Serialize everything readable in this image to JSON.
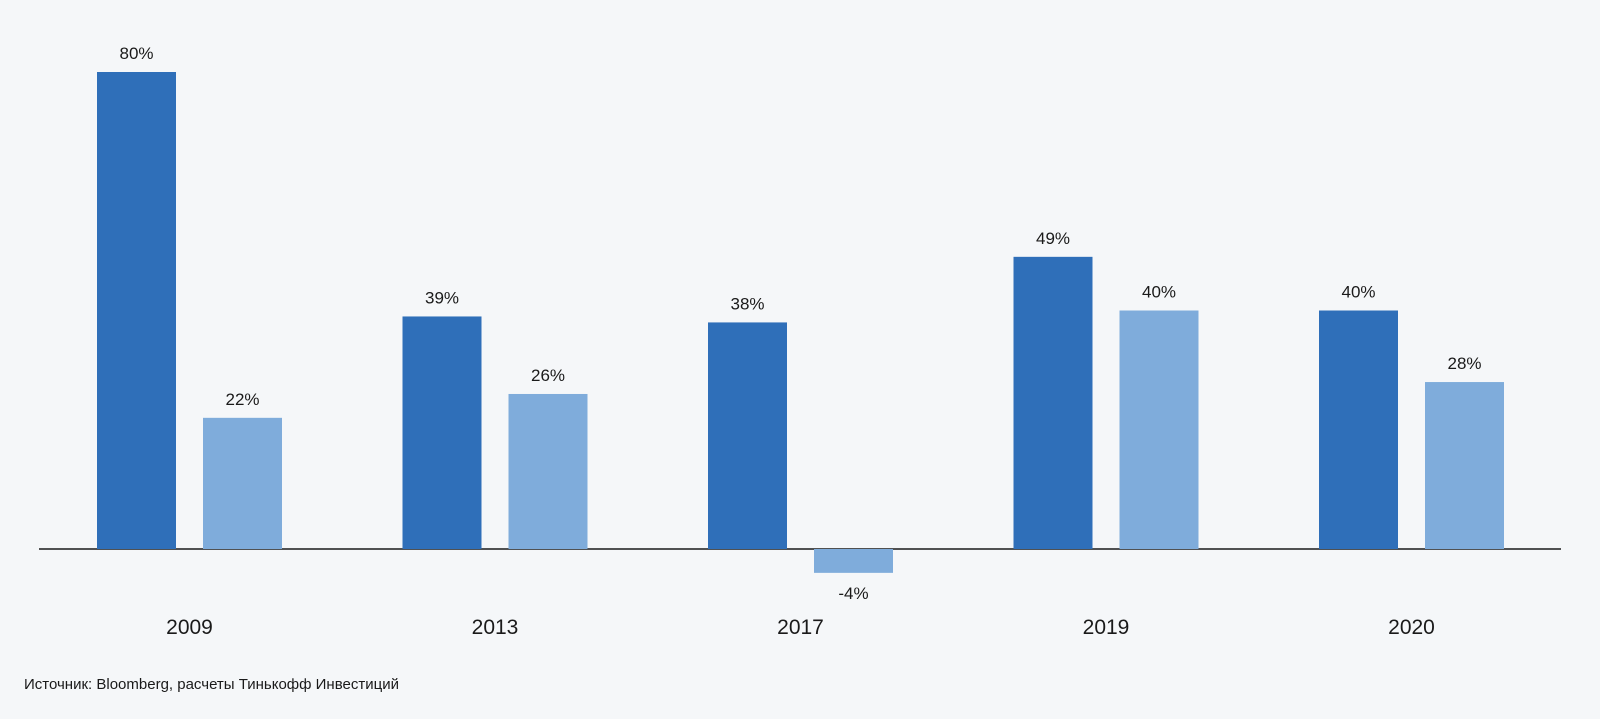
{
  "chart_data": {
    "type": "bar",
    "categories": [
      "2009",
      "2013",
      "2017",
      "2019",
      "2020"
    ],
    "series": [
      {
        "values": [
          80,
          39,
          38,
          49,
          40
        ],
        "labels": [
          "80%",
          "39%",
          "38%",
          "49%",
          "40%"
        ],
        "color": "#2f6fb9"
      },
      {
        "values": [
          22,
          26,
          -4,
          40,
          28
        ],
        "labels": [
          "22%",
          "26%",
          "-4%",
          "40%",
          "28%"
        ],
        "color": "#7facdb"
      }
    ],
    "ylim": [
      -4,
      80
    ],
    "grid": false,
    "legend": false,
    "axis_color": "#1a1a1a"
  },
  "source_note": "Источник: Bloomberg, расчеты Тинькофф Инвестиций",
  "colors": {
    "background": "#f5f7f9",
    "text": "#1a1a1a"
  }
}
